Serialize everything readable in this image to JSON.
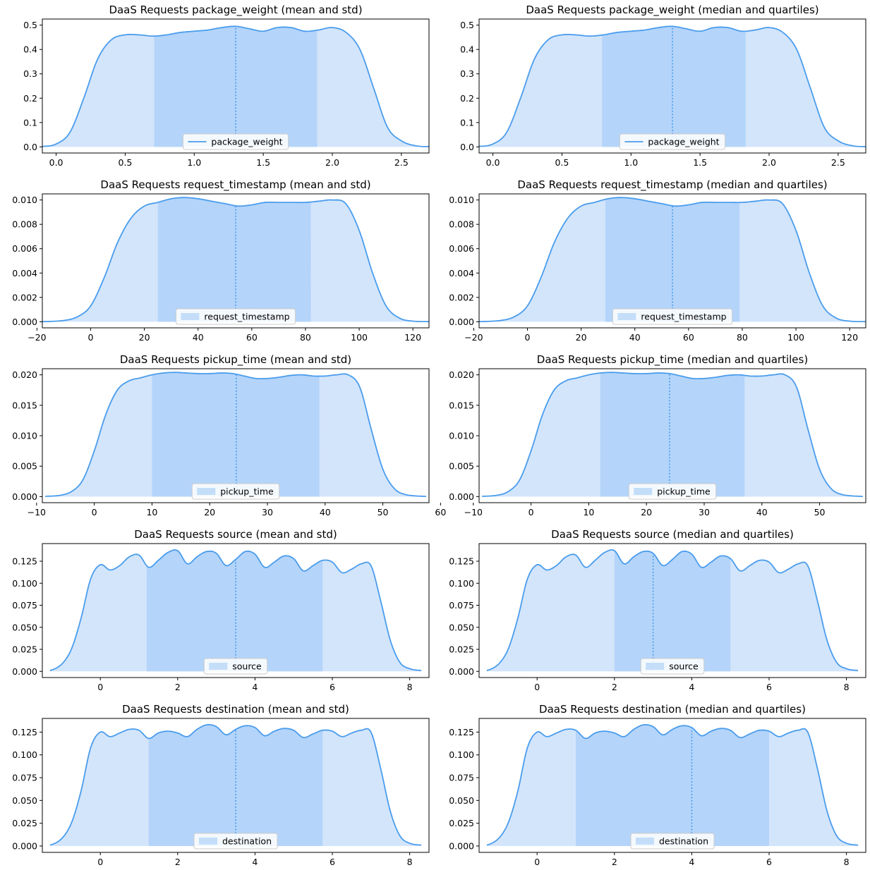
{
  "colors": {
    "line": "#4a9cec",
    "fill_outer": "#d2e5fb",
    "fill_inner": "#b4d5f9",
    "legend_patch": "#c4ddf9",
    "axes": "#000000"
  },
  "chart_data": [
    {
      "type": "area",
      "title": "DaaS Requests package_weight (mean and std)",
      "legend": "package_weight",
      "legend_style": "line",
      "xlim": [
        -0.1,
        2.7
      ],
      "ylim": [
        -0.025,
        0.525
      ],
      "xticks": [
        0.0,
        0.5,
        1.0,
        1.5,
        2.0,
        2.5
      ],
      "xtick_labels": [
        "0.0",
        "0.5",
        "1.0",
        "1.5",
        "2.0",
        "2.5"
      ],
      "yticks": [
        0.0,
        0.1,
        0.2,
        0.3,
        0.4,
        0.5
      ],
      "ytick_labels": [
        "0.0",
        "0.1",
        "0.2",
        "0.3",
        "0.4",
        "0.5"
      ],
      "x": [
        -0.1,
        0.0,
        0.1,
        0.2,
        0.3,
        0.4,
        0.5,
        0.6,
        0.7,
        0.8,
        0.9,
        1.0,
        1.1,
        1.2,
        1.3,
        1.4,
        1.5,
        1.6,
        1.7,
        1.8,
        1.9,
        2.0,
        2.1,
        2.2,
        2.3,
        2.4,
        2.5,
        2.6,
        2.7
      ],
      "y": [
        0.002,
        0.012,
        0.06,
        0.2,
        0.36,
        0.44,
        0.46,
        0.46,
        0.455,
        0.46,
        0.47,
        0.475,
        0.48,
        0.49,
        0.495,
        0.485,
        0.475,
        0.49,
        0.49,
        0.475,
        0.48,
        0.49,
        0.47,
        0.4,
        0.24,
        0.08,
        0.025,
        0.005,
        0.001
      ],
      "center": 1.3,
      "band": [
        0.71,
        1.89
      ]
    },
    {
      "type": "area",
      "title": "DaaS Requests package_weight (median and quartiles)",
      "legend": "package_weight",
      "legend_style": "line",
      "xlim": [
        -0.1,
        2.7
      ],
      "ylim": [
        -0.025,
        0.525
      ],
      "xticks": [
        0.0,
        0.5,
        1.0,
        1.5,
        2.0,
        2.5
      ],
      "xtick_labels": [
        "0.0",
        "0.5",
        "1.0",
        "1.5",
        "2.0",
        "2.5"
      ],
      "yticks": [
        0.0,
        0.1,
        0.2,
        0.3,
        0.4,
        0.5
      ],
      "ytick_labels": [
        "0.0",
        "0.1",
        "0.2",
        "0.3",
        "0.4",
        "0.5"
      ],
      "x": [
        -0.1,
        0.0,
        0.1,
        0.2,
        0.3,
        0.4,
        0.5,
        0.6,
        0.7,
        0.8,
        0.9,
        1.0,
        1.1,
        1.2,
        1.3,
        1.4,
        1.5,
        1.6,
        1.7,
        1.8,
        1.9,
        2.0,
        2.1,
        2.2,
        2.3,
        2.4,
        2.5,
        2.6,
        2.7
      ],
      "y": [
        0.002,
        0.012,
        0.06,
        0.2,
        0.36,
        0.44,
        0.46,
        0.46,
        0.455,
        0.46,
        0.47,
        0.475,
        0.48,
        0.49,
        0.495,
        0.485,
        0.475,
        0.49,
        0.49,
        0.475,
        0.48,
        0.49,
        0.47,
        0.4,
        0.24,
        0.08,
        0.025,
        0.005,
        0.001
      ],
      "center": 1.3,
      "band": [
        0.79,
        1.83
      ]
    },
    {
      "type": "area",
      "title": "DaaS Requests request_timestamp (mean and std)",
      "legend": "request_timestamp",
      "legend_style": "patch",
      "xlim": [
        -18,
        126
      ],
      "ylim": [
        -0.0005,
        0.0105
      ],
      "xticks": [
        -20,
        0,
        20,
        40,
        60,
        80,
        100,
        120
      ],
      "xtick_labels": [
        "−20",
        "0",
        "20",
        "40",
        "60",
        "80",
        "100",
        "120"
      ],
      "yticks": [
        0.0,
        0.002,
        0.004,
        0.006,
        0.008,
        0.01
      ],
      "ytick_labels": [
        "0.000",
        "0.002",
        "0.004",
        "0.006",
        "0.008",
        "0.010"
      ],
      "x": [
        -18,
        -10,
        -5,
        0,
        5,
        10,
        15,
        20,
        25,
        30,
        35,
        40,
        45,
        50,
        55,
        60,
        65,
        70,
        75,
        80,
        85,
        90,
        95,
        100,
        105,
        110,
        115,
        120,
        126
      ],
      "y": [
        1e-05,
        0.0001,
        0.0004,
        0.0013,
        0.0036,
        0.0065,
        0.0085,
        0.0095,
        0.0098,
        0.0101,
        0.0102,
        0.0101,
        0.0099,
        0.0097,
        0.0095,
        0.0096,
        0.0098,
        0.0098,
        0.0098,
        0.0098,
        0.0099,
        0.01,
        0.0097,
        0.0075,
        0.004,
        0.0013,
        0.0003,
        5e-05,
        1e-05
      ],
      "center": 54,
      "band": [
        25,
        82
      ]
    },
    {
      "type": "area",
      "title": "DaaS Requests request_timestamp (median and quartiles)",
      "legend": "request_timestamp",
      "legend_style": "patch",
      "xlim": [
        -18,
        126
      ],
      "ylim": [
        -0.0005,
        0.0105
      ],
      "xticks": [
        -20,
        0,
        20,
        40,
        60,
        80,
        100,
        120
      ],
      "xtick_labels": [
        "−20",
        "0",
        "20",
        "40",
        "60",
        "80",
        "100",
        "120"
      ],
      "yticks": [
        0.0,
        0.002,
        0.004,
        0.006,
        0.008,
        0.01
      ],
      "ytick_labels": [
        "0.000",
        "0.002",
        "0.004",
        "0.006",
        "0.008",
        "0.010"
      ],
      "x": [
        -18,
        -10,
        -5,
        0,
        5,
        10,
        15,
        20,
        25,
        30,
        35,
        40,
        45,
        50,
        55,
        60,
        65,
        70,
        75,
        80,
        85,
        90,
        95,
        100,
        105,
        110,
        115,
        120,
        126
      ],
      "y": [
        1e-05,
        0.0001,
        0.0004,
        0.0013,
        0.0036,
        0.0065,
        0.0085,
        0.0095,
        0.0098,
        0.0101,
        0.0102,
        0.0101,
        0.0099,
        0.0097,
        0.0095,
        0.0096,
        0.0098,
        0.0098,
        0.0098,
        0.0098,
        0.0099,
        0.01,
        0.0097,
        0.0075,
        0.004,
        0.0013,
        0.0003,
        5e-05,
        1e-05
      ],
      "center": 54,
      "band": [
        29,
        79
      ]
    },
    {
      "type": "area",
      "title": "DaaS Requests pickup_time (mean and std)",
      "legend": "pickup_time",
      "legend_style": "patch",
      "xlim": [
        -9,
        58
      ],
      "ylim": [
        -0.001,
        0.021
      ],
      "xticks": [
        -10,
        0,
        10,
        20,
        30,
        40,
        50,
        60
      ],
      "xtick_labels": [
        "−10",
        "0",
        "10",
        "20",
        "30",
        "40",
        "50",
        "60"
      ],
      "yticks": [
        0.0,
        0.005,
        0.01,
        0.015,
        0.02
      ],
      "ytick_labels": [
        "0.000",
        "0.005",
        "0.010",
        "0.015",
        "0.020"
      ],
      "x": [
        -8.5,
        -6,
        -4,
        -2,
        0,
        2,
        4,
        6,
        8,
        10,
        12,
        14,
        16,
        18,
        20,
        22,
        24,
        26,
        28,
        30,
        32,
        34,
        36,
        38,
        40,
        42,
        44,
        46,
        48,
        50,
        52,
        54,
        57.5
      ],
      "y": [
        5e-05,
        0.0002,
        0.0008,
        0.0027,
        0.0075,
        0.0135,
        0.0175,
        0.019,
        0.0195,
        0.02,
        0.0203,
        0.0204,
        0.0203,
        0.0202,
        0.0202,
        0.0203,
        0.0202,
        0.0198,
        0.0194,
        0.0194,
        0.0196,
        0.0199,
        0.02,
        0.0198,
        0.0198,
        0.02,
        0.02,
        0.018,
        0.011,
        0.0045,
        0.0013,
        0.0003,
        3e-05
      ],
      "center": 24.6,
      "band": [
        10,
        39
      ]
    },
    {
      "type": "area",
      "title": "DaaS Requests pickup_time (median and quartiles)",
      "legend": "pickup_time",
      "legend_style": "patch",
      "xlim": [
        -9,
        58
      ],
      "ylim": [
        -0.001,
        0.021
      ],
      "xticks": [
        -10,
        0,
        10,
        20,
        30,
        40,
        50,
        60
      ],
      "xtick_labels": [
        "−10",
        "0",
        "10",
        "20",
        "30",
        "40",
        "50",
        "60"
      ],
      "yticks": [
        0.0,
        0.005,
        0.01,
        0.015,
        0.02
      ],
      "ytick_labels": [
        "0.000",
        "0.005",
        "0.010",
        "0.015",
        "0.020"
      ],
      "x": [
        -8.5,
        -6,
        -4,
        -2,
        0,
        2,
        4,
        6,
        8,
        10,
        12,
        14,
        16,
        18,
        20,
        22,
        24,
        26,
        28,
        30,
        32,
        34,
        36,
        38,
        40,
        42,
        44,
        46,
        48,
        50,
        52,
        54,
        57.5
      ],
      "y": [
        5e-05,
        0.0002,
        0.0008,
        0.0027,
        0.0075,
        0.0135,
        0.0175,
        0.019,
        0.0195,
        0.02,
        0.0203,
        0.0204,
        0.0203,
        0.0202,
        0.0202,
        0.0203,
        0.0202,
        0.0198,
        0.0194,
        0.0194,
        0.0196,
        0.0199,
        0.02,
        0.0198,
        0.0198,
        0.02,
        0.02,
        0.018,
        0.011,
        0.0045,
        0.0013,
        0.0003,
        3e-05
      ],
      "center": 24,
      "band": [
        12,
        37
      ]
    },
    {
      "type": "area",
      "title": "DaaS Requests source (mean and std)",
      "legend": "source",
      "legend_style": "patch",
      "xlim": [
        -1.5,
        8.5
      ],
      "ylim": [
        -0.007,
        0.145
      ],
      "xticks": [
        0,
        2,
        4,
        6,
        8
      ],
      "xtick_labels": [
        "0",
        "2",
        "4",
        "6",
        "8"
      ],
      "yticks": [
        0.0,
        0.025,
        0.05,
        0.075,
        0.1,
        0.125
      ],
      "ytick_labels": [
        "0.000",
        "0.025",
        "0.050",
        "0.075",
        "0.100",
        "0.125"
      ],
      "x": [
        -1.3,
        -1.0,
        -0.75,
        -0.5,
        -0.25,
        0.0,
        0.25,
        0.5,
        0.75,
        1.0,
        1.25,
        1.5,
        1.75,
        2.0,
        2.25,
        2.5,
        2.75,
        3.0,
        3.25,
        3.5,
        3.75,
        4.0,
        4.25,
        4.5,
        4.75,
        5.0,
        5.25,
        5.5,
        5.75,
        6.0,
        6.25,
        6.5,
        6.75,
        7.0,
        7.25,
        7.5,
        7.75,
        8.0,
        8.3
      ],
      "y": [
        0.001,
        0.008,
        0.025,
        0.06,
        0.105,
        0.121,
        0.115,
        0.12,
        0.13,
        0.132,
        0.118,
        0.126,
        0.135,
        0.137,
        0.122,
        0.13,
        0.136,
        0.134,
        0.12,
        0.127,
        0.136,
        0.133,
        0.118,
        0.124,
        0.131,
        0.128,
        0.114,
        0.12,
        0.126,
        0.124,
        0.112,
        0.116,
        0.122,
        0.12,
        0.08,
        0.035,
        0.01,
        0.003,
        0.001
      ],
      "center": 3.5,
      "band": [
        1.2,
        5.75
      ]
    },
    {
      "type": "area",
      "title": "DaaS Requests source (median and quartiles)",
      "legend": "source",
      "legend_style": "patch",
      "xlim": [
        -1.5,
        8.5
      ],
      "ylim": [
        -0.007,
        0.145
      ],
      "xticks": [
        0,
        2,
        4,
        6,
        8
      ],
      "xtick_labels": [
        "0",
        "2",
        "4",
        "6",
        "8"
      ],
      "yticks": [
        0.0,
        0.025,
        0.05,
        0.075,
        0.1,
        0.125
      ],
      "ytick_labels": [
        "0.000",
        "0.025",
        "0.050",
        "0.075",
        "0.100",
        "0.125"
      ],
      "x": [
        -1.3,
        -1.0,
        -0.75,
        -0.5,
        -0.25,
        0.0,
        0.25,
        0.5,
        0.75,
        1.0,
        1.25,
        1.5,
        1.75,
        2.0,
        2.25,
        2.5,
        2.75,
        3.0,
        3.25,
        3.5,
        3.75,
        4.0,
        4.25,
        4.5,
        4.75,
        5.0,
        5.25,
        5.5,
        5.75,
        6.0,
        6.25,
        6.5,
        6.75,
        7.0,
        7.25,
        7.5,
        7.75,
        8.0,
        8.3
      ],
      "y": [
        0.001,
        0.008,
        0.025,
        0.06,
        0.105,
        0.121,
        0.115,
        0.12,
        0.13,
        0.132,
        0.118,
        0.126,
        0.135,
        0.137,
        0.122,
        0.13,
        0.136,
        0.134,
        0.12,
        0.127,
        0.136,
        0.133,
        0.118,
        0.124,
        0.131,
        0.128,
        0.114,
        0.12,
        0.126,
        0.124,
        0.112,
        0.116,
        0.122,
        0.12,
        0.08,
        0.035,
        0.01,
        0.003,
        0.001
      ],
      "center": 3.0,
      "band": [
        2.0,
        5.0
      ]
    },
    {
      "type": "area",
      "title": "DaaS Requests destination (mean and std)",
      "legend": "destination",
      "legend_style": "patch",
      "xlim": [
        -1.5,
        8.5
      ],
      "ylim": [
        -0.007,
        0.14
      ],
      "xticks": [
        0,
        2,
        4,
        6,
        8
      ],
      "xtick_labels": [
        "0",
        "2",
        "4",
        "6",
        "8"
      ],
      "yticks": [
        0.0,
        0.025,
        0.05,
        0.075,
        0.1,
        0.125
      ],
      "ytick_labels": [
        "0.000",
        "0.025",
        "0.050",
        "0.075",
        "0.100",
        "0.125"
      ],
      "x": [
        -1.3,
        -1.0,
        -0.75,
        -0.5,
        -0.25,
        0.0,
        0.25,
        0.5,
        0.75,
        1.0,
        1.25,
        1.5,
        1.75,
        2.0,
        2.25,
        2.5,
        2.75,
        3.0,
        3.25,
        3.5,
        3.75,
        4.0,
        4.25,
        4.5,
        4.75,
        5.0,
        5.25,
        5.5,
        5.75,
        6.0,
        6.25,
        6.5,
        6.75,
        7.0,
        7.25,
        7.5,
        7.75,
        8.0,
        8.3
      ],
      "y": [
        0.001,
        0.008,
        0.025,
        0.06,
        0.108,
        0.125,
        0.12,
        0.124,
        0.128,
        0.127,
        0.118,
        0.124,
        0.126,
        0.124,
        0.12,
        0.128,
        0.133,
        0.131,
        0.122,
        0.128,
        0.132,
        0.13,
        0.121,
        0.126,
        0.129,
        0.127,
        0.119,
        0.123,
        0.127,
        0.126,
        0.12,
        0.124,
        0.127,
        0.125,
        0.085,
        0.038,
        0.011,
        0.003,
        0.001
      ],
      "center": 3.5,
      "band": [
        1.25,
        5.75
      ]
    },
    {
      "type": "area",
      "title": "DaaS Requests destination (median and quartiles)",
      "legend": "destination",
      "legend_style": "patch",
      "xlim": [
        -1.5,
        8.5
      ],
      "ylim": [
        -0.007,
        0.14
      ],
      "xticks": [
        0,
        2,
        4,
        6,
        8
      ],
      "xtick_labels": [
        "0",
        "2",
        "4",
        "6",
        "8"
      ],
      "yticks": [
        0.0,
        0.025,
        0.05,
        0.075,
        0.1,
        0.125
      ],
      "ytick_labels": [
        "0.000",
        "0.025",
        "0.050",
        "0.075",
        "0.100",
        "0.125"
      ],
      "x": [
        -1.3,
        -1.0,
        -0.75,
        -0.5,
        -0.25,
        0.0,
        0.25,
        0.5,
        0.75,
        1.0,
        1.25,
        1.5,
        1.75,
        2.0,
        2.25,
        2.5,
        2.75,
        3.0,
        3.25,
        3.5,
        3.75,
        4.0,
        4.25,
        4.5,
        4.75,
        5.0,
        5.25,
        5.5,
        5.75,
        6.0,
        6.25,
        6.5,
        6.75,
        7.0,
        7.25,
        7.5,
        7.75,
        8.0,
        8.3
      ],
      "y": [
        0.001,
        0.008,
        0.025,
        0.06,
        0.108,
        0.125,
        0.12,
        0.124,
        0.128,
        0.127,
        0.118,
        0.124,
        0.126,
        0.124,
        0.12,
        0.128,
        0.133,
        0.131,
        0.122,
        0.128,
        0.132,
        0.13,
        0.121,
        0.126,
        0.129,
        0.127,
        0.119,
        0.123,
        0.127,
        0.126,
        0.12,
        0.124,
        0.127,
        0.125,
        0.085,
        0.038,
        0.011,
        0.003,
        0.001
      ],
      "center": 4.0,
      "band": [
        1.0,
        6.0
      ]
    }
  ]
}
